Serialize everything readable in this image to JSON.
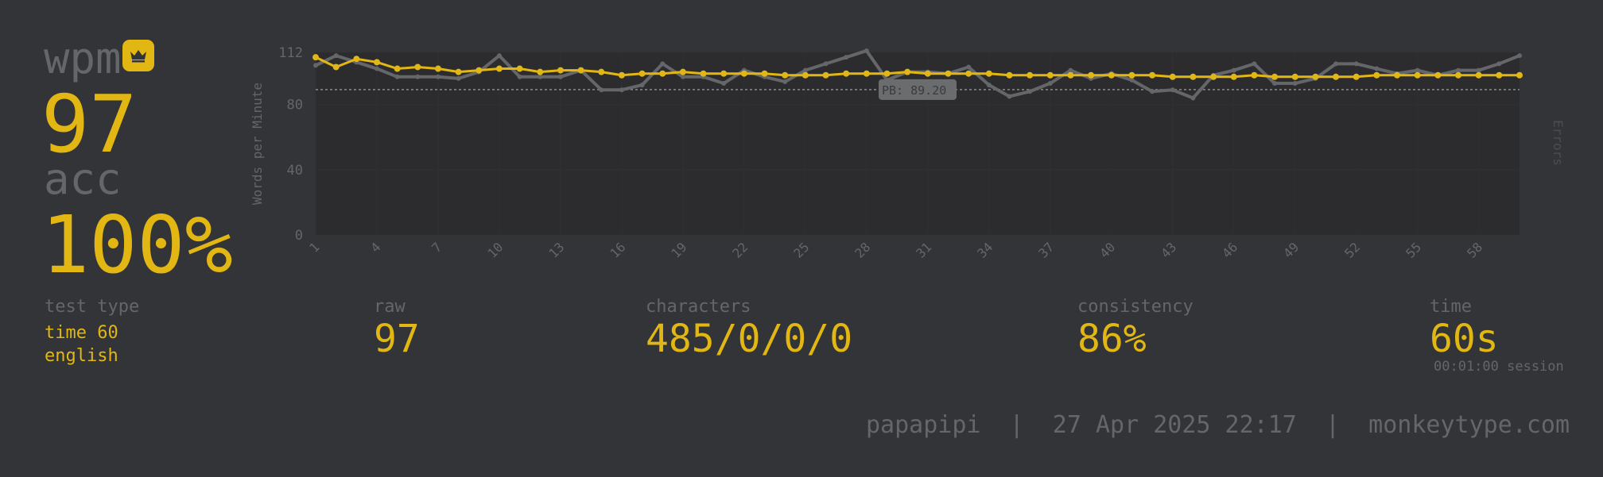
{
  "result": {
    "wpm_label": "wpm",
    "wpm_value": "97",
    "acc_label": "acc",
    "acc_value": "100%",
    "pb_icon": "crown-icon"
  },
  "stats": {
    "test_type_label": "test type",
    "test_type_mode": "time 60",
    "test_type_language": "english",
    "raw_label": "raw",
    "raw_value": "97",
    "characters_label": "characters",
    "characters_value": "485/0/0/0",
    "consistency_label": "consistency",
    "consistency_value": "86%",
    "time_label": "time",
    "time_value": "60s",
    "session_text": "00:01:00 session"
  },
  "footer": {
    "text": "papapipi  |  27 Apr 2025 22:17  |  monkeytype.com"
  },
  "colors": {
    "background": "#323437",
    "accent": "#e2b714",
    "subtext": "#646669",
    "plot_bg": "#2c2c2e"
  },
  "chart_data": {
    "type": "line",
    "ylabel": "Words per Minute",
    "y2label": "Errors",
    "ylim": [
      0,
      112
    ],
    "yticks": [
      0,
      40,
      80,
      112
    ],
    "xticks": [
      1,
      4,
      7,
      10,
      13,
      16,
      19,
      22,
      25,
      28,
      31,
      34,
      37,
      40,
      43,
      46,
      49,
      52,
      55,
      58
    ],
    "x": [
      1,
      2,
      3,
      4,
      5,
      6,
      7,
      8,
      9,
      10,
      11,
      12,
      13,
      14,
      15,
      16,
      17,
      18,
      19,
      20,
      21,
      22,
      23,
      24,
      25,
      26,
      27,
      28,
      29,
      30,
      31,
      32,
      33,
      34,
      35,
      36,
      37,
      38,
      39,
      40,
      41,
      42,
      43,
      44,
      45,
      46,
      47,
      48,
      49,
      50,
      51,
      52,
      53,
      54,
      55,
      56,
      57,
      58,
      59,
      60
    ],
    "pb_line": {
      "value": 89.2,
      "label": "PB: 89.20"
    },
    "series": [
      {
        "color": "#e2b714",
        "values": [
          109,
          103,
          108,
          106,
          102,
          103,
          102,
          100,
          101,
          102,
          102,
          100,
          101,
          101,
          100,
          98,
          99,
          99,
          100,
          99,
          99,
          99,
          99,
          98,
          98,
          98,
          99,
          99,
          99,
          100,
          99,
          99,
          99,
          99,
          98,
          98,
          98,
          98,
          98,
          98,
          98,
          98,
          97,
          97,
          97,
          97,
          98,
          97,
          97,
          97,
          97,
          97,
          98,
          98,
          98,
          98,
          98,
          98,
          98,
          98
        ]
      },
      {
        "color": "#646669",
        "values": [
          104,
          110,
          106,
          102,
          97,
          97,
          97,
          96,
          100,
          110,
          97,
          97,
          97,
          101,
          89,
          89,
          92,
          105,
          97,
          97,
          93,
          101,
          97,
          94,
          101,
          105,
          109,
          113,
          95,
          100,
          100,
          99,
          103,
          92,
          85,
          88,
          93,
          101,
          96,
          99,
          95,
          88,
          89,
          84,
          98,
          101,
          105,
          93,
          93,
          96,
          105,
          105,
          102,
          99,
          101,
          98,
          101,
          101,
          105,
          110
        ]
      }
    ]
  }
}
